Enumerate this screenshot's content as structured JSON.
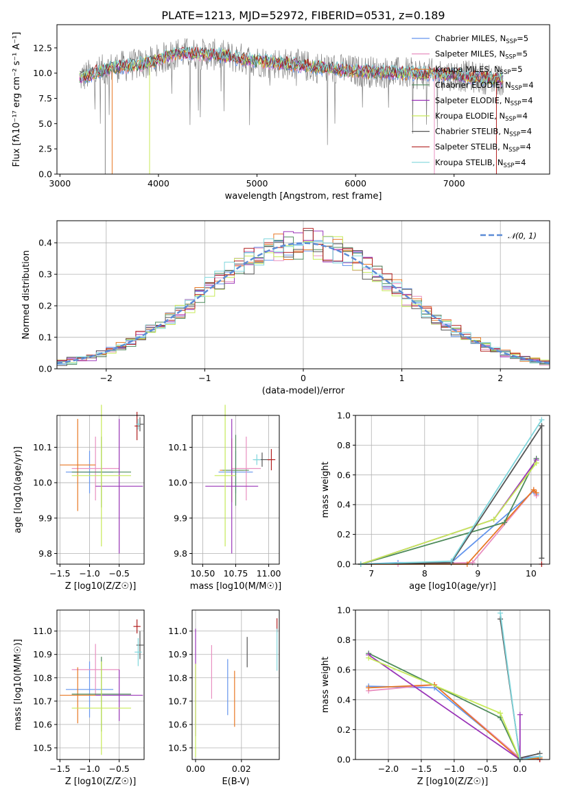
{
  "chart_data": [
    {
      "type": "line",
      "title": "PLATE=1213, MJD=52972, FIBERID=0531, z=0.189",
      "xlabel": "wavelength [Angstrom, rest frame]",
      "ylabel": "Flux [fλ10⁻¹⁷ erg cm⁻² s⁻¹ A⁻¹]",
      "xlim": [
        2970,
        7970
      ],
      "ylim": [
        0,
        14.8
      ],
      "xticks": [
        3000,
        4000,
        5000,
        6000,
        7000
      ],
      "yticks": [
        0.0,
        2.5,
        5.0,
        7.5,
        10.0,
        12.5
      ],
      "grid": false,
      "legend_position": "top-right",
      "series": [
        {
          "name": "Chabrier MILES, N_SSP=5",
          "color": "#6495ed"
        },
        {
          "name": "Salpeter MILES, N_SSP=5",
          "color": "#e88fc0"
        },
        {
          "name": "Kroupa MILES, N_SSP=5",
          "color": "#e87722"
        },
        {
          "name": "Chabrier ELODIE, N_SSP=4",
          "color": "#4d8a5a"
        },
        {
          "name": "Salpeter ELODIE, N_SSP=4",
          "color": "#9a35b8"
        },
        {
          "name": "Kroupa ELODIE, N_SSP=4",
          "color": "#c6ea57"
        },
        {
          "name": "Chabrier STELIB, N_SSP=4",
          "color": "#555555"
        },
        {
          "name": "Salpeter STELIB, N_SSP=4",
          "color": "#b01c1c"
        },
        {
          "name": "Kroupa STELIB, N_SSP=4",
          "color": "#7fd6dc"
        }
      ],
      "data_color": "#808080",
      "approx_continuum": [
        [
          3200,
          9.5
        ],
        [
          3500,
          10.5
        ],
        [
          3900,
          11.0
        ],
        [
          4200,
          12.0
        ],
        [
          4600,
          11.8
        ],
        [
          5000,
          11.2
        ],
        [
          5500,
          10.7
        ],
        [
          6000,
          10.2
        ],
        [
          6500,
          10.0
        ],
        [
          7000,
          9.8
        ],
        [
          7500,
          9.3
        ]
      ]
    },
    {
      "type": "line",
      "xlabel": "(data-model)/error",
      "ylabel": "Normed distribution",
      "xlim": [
        -2.5,
        2.5
      ],
      "ylim": [
        0,
        0.47
      ],
      "xticks": [
        -2,
        -1,
        0,
        1,
        2
      ],
      "yticks": [
        0.0,
        0.1,
        0.2,
        0.3,
        0.4
      ],
      "grid": true,
      "legend": "𝒩(0, 1)",
      "legend_position": "top-right",
      "reference_curve": "normal(0,1)",
      "histogram_bin_width": 0.1
    },
    {
      "type": "scatter",
      "xlabel": "Z [log10(Z/Z☉)]",
      "ylabel": "age [log10(age/yr)]",
      "xlim": [
        -1.55,
        -0.08
      ],
      "ylim": [
        9.77,
        10.19
      ],
      "xticks": [
        -1.5,
        -1.0,
        -0.5
      ],
      "yticks": [
        9.8,
        9.9,
        10.0,
        10.1
      ],
      "grid": true,
      "points": [
        {
          "x": -1.0,
          "y": 10.03,
          "xerr": 0.4,
          "yerr": 0.06,
          "color": "#6495ed"
        },
        {
          "x": -0.9,
          "y": 10.04,
          "xerr": 0.4,
          "yerr": 0.09,
          "color": "#e88fc0"
        },
        {
          "x": -1.2,
          "y": 10.05,
          "xerr": 0.3,
          "yerr": 0.13,
          "color": "#e87722"
        },
        {
          "x": -0.8,
          "y": 10.03,
          "xerr": 0.5,
          "yerr": 0.1,
          "color": "#4d8a5a"
        },
        {
          "x": -0.5,
          "y": 9.99,
          "xerr": 0.4,
          "yerr": 0.19,
          "color": "#9a35b8"
        },
        {
          "x": -0.8,
          "y": 10.02,
          "xerr": 0.5,
          "yerr": 0.2,
          "color": "#c6ea57"
        },
        {
          "x": -0.15,
          "y": 10.165,
          "xerr": 0.06,
          "yerr": 0.02,
          "color": "#555555"
        },
        {
          "x": -0.2,
          "y": 10.16,
          "xerr": 0.04,
          "yerr": 0.04,
          "color": "#b01c1c"
        },
        {
          "x": -0.18,
          "y": 10.165,
          "xerr": 0.03,
          "yerr": 0.015,
          "color": "#7fd6dc"
        }
      ]
    },
    {
      "type": "scatter",
      "xlabel": "mass [log10(M/M☉)]",
      "ylabel": "",
      "xlim": [
        10.42,
        11.08
      ],
      "ylim": [
        9.77,
        10.19
      ],
      "xticks": [
        10.5,
        10.75,
        11.0
      ],
      "yticks": [
        9.8,
        9.9,
        10.0,
        10.1
      ],
      "grid": true,
      "points": [
        {
          "x": 10.75,
          "y": 10.03,
          "xerr": 0.13,
          "yerr": 0.06,
          "color": "#6495ed"
        },
        {
          "x": 10.83,
          "y": 10.04,
          "xerr": 0.11,
          "yerr": 0.09,
          "color": "#e88fc0"
        },
        {
          "x": 10.72,
          "y": 10.035,
          "xerr": 0.09,
          "yerr": 0.09,
          "color": "#e87722"
        },
        {
          "x": 10.75,
          "y": 10.035,
          "xerr": 0.1,
          "yerr": 0.1,
          "color": "#4d8a5a"
        },
        {
          "x": 10.72,
          "y": 9.99,
          "xerr": 0.2,
          "yerr": 0.19,
          "color": "#9a35b8"
        },
        {
          "x": 10.67,
          "y": 10.02,
          "xerr": 0.08,
          "yerr": 0.2,
          "color": "#c6ea57"
        },
        {
          "x": 10.95,
          "y": 10.065,
          "xerr": 0.06,
          "yerr": 0.02,
          "color": "#555555"
        },
        {
          "x": 11.02,
          "y": 10.065,
          "xerr": 0.03,
          "yerr": 0.03,
          "color": "#b01c1c"
        },
        {
          "x": 10.91,
          "y": 10.065,
          "xerr": 0.03,
          "yerr": 0.015,
          "color": "#7fd6dc"
        }
      ]
    },
    {
      "type": "line",
      "xlabel": "age [log10(age/yr)]",
      "ylabel": "mass weight",
      "xlim": [
        6.7,
        10.35
      ],
      "ylim": [
        0,
        1.0
      ],
      "xticks": [
        7,
        8,
        9,
        10
      ],
      "yticks": [
        0.0,
        0.2,
        0.4,
        0.6,
        0.8,
        1.0
      ],
      "grid": true,
      "series": [
        {
          "color": "#6495ed",
          "x": [
            6.8,
            7.5,
            8.5,
            10.05,
            10.1
          ],
          "y": [
            0.0,
            0.01,
            0.01,
            0.49,
            0.47
          ]
        },
        {
          "color": "#e88fc0",
          "x": [
            6.8,
            7.5,
            8.9,
            10.05,
            10.1
          ],
          "y": [
            0.0,
            0.0,
            0.01,
            0.5,
            0.46
          ]
        },
        {
          "color": "#e87722",
          "x": [
            6.8,
            8.8,
            10.05,
            10.1
          ],
          "y": [
            0.0,
            0.0,
            0.5,
            0.48
          ]
        },
        {
          "color": "#4d8a5a",
          "x": [
            6.8,
            9.5,
            10.1
          ],
          "y": [
            0.0,
            0.28,
            0.71
          ]
        },
        {
          "color": "#9a35b8",
          "x": [
            6.8,
            9.3,
            10.1
          ],
          "y": [
            0.0,
            0.3,
            0.7
          ]
        },
        {
          "color": "#c6ea57",
          "x": [
            6.8,
            9.3,
            10.1
          ],
          "y": [
            0.0,
            0.3,
            0.68
          ]
        },
        {
          "color": "#555555",
          "x": [
            6.8,
            8.5,
            10.2,
            10.2
          ],
          "y": [
            0.0,
            0.01,
            0.93,
            0.04
          ]
        },
        {
          "color": "#b01c1c",
          "x": [
            10.2
          ],
          "y": [
            0.0
          ]
        },
        {
          "color": "#7fd6dc",
          "x": [
            6.8,
            8.5,
            10.2
          ],
          "y": [
            0.0,
            0.02,
            0.97
          ]
        }
      ]
    },
    {
      "type": "scatter",
      "xlabel": "Z [log10(Z/Z☉)]",
      "ylabel": "mass [log10(M/M☉)]",
      "xlim": [
        -1.55,
        -0.08
      ],
      "ylim": [
        10.45,
        11.09
      ],
      "xticks": [
        -1.5,
        -1.0,
        -0.5
      ],
      "yticks": [
        10.5,
        10.6,
        10.7,
        10.8,
        10.9,
        11.0
      ],
      "grid": true,
      "points": [
        {
          "x": -1.0,
          "y": 10.75,
          "xerr": 0.4,
          "yerr": 0.12,
          "color": "#6495ed"
        },
        {
          "x": -0.9,
          "y": 10.835,
          "xerr": 0.4,
          "yerr": 0.11,
          "color": "#e88fc0"
        },
        {
          "x": -1.2,
          "y": 10.725,
          "xerr": 0.3,
          "yerr": 0.12,
          "color": "#e87722"
        },
        {
          "x": -0.8,
          "y": 10.73,
          "xerr": 0.5,
          "yerr": 0.16,
          "color": "#4d8a5a"
        },
        {
          "x": -0.5,
          "y": 10.725,
          "xerr": 0.4,
          "yerr": 0.11,
          "color": "#9a35b8"
        },
        {
          "x": -0.8,
          "y": 10.67,
          "xerr": 0.5,
          "yerr": 0.2,
          "color": "#c6ea57"
        },
        {
          "x": -0.15,
          "y": 10.94,
          "xerr": 0.06,
          "yerr": 0.06,
          "color": "#555555"
        },
        {
          "x": -0.2,
          "y": 11.02,
          "xerr": 0.06,
          "yerr": 0.03,
          "color": "#b01c1c"
        },
        {
          "x": -0.18,
          "y": 10.91,
          "xerr": 0.06,
          "yerr": 0.06,
          "color": "#7fd6dc"
        }
      ]
    },
    {
      "type": "scatter",
      "xlabel": "E(B-V)",
      "ylabel": "",
      "xlim": [
        -0.0015,
        0.0365
      ],
      "ylim": [
        10.45,
        11.09
      ],
      "xticks": [
        0.0,
        0.02
      ],
      "yticks": [
        10.5,
        10.6,
        10.7,
        10.8,
        10.9,
        11.0
      ],
      "grid": true,
      "points": [
        {
          "x": 0.0,
          "y": 10.78,
          "yerr": 0.23,
          "color": "#9a35b8"
        },
        {
          "x": 0.0,
          "y": 10.66,
          "yerr": 0.2,
          "color": "#c6ea57"
        },
        {
          "x": 0.007,
          "y": 10.825,
          "yerr": 0.115,
          "color": "#e88fc0"
        },
        {
          "x": 0.014,
          "y": 10.76,
          "yerr": 0.12,
          "color": "#6495ed"
        },
        {
          "x": 0.017,
          "y": 10.71,
          "yerr": 0.12,
          "color": "#e87722"
        },
        {
          "x": 0.0225,
          "y": 10.91,
          "yerr": 0.065,
          "color": "#555555"
        },
        {
          "x": 0.0355,
          "y": 11.025,
          "yerr": 0.03,
          "color": "#b01c1c"
        },
        {
          "x": 0.0355,
          "y": 10.92,
          "yerr": 0.09,
          "color": "#7fd6dc"
        }
      ]
    },
    {
      "type": "line",
      "xlabel": "Z [log10(Z/Z☉)]",
      "ylabel": "mass weight",
      "xlim": [
        -2.5,
        0.45
      ],
      "ylim": [
        0,
        1.0
      ],
      "xticks": [
        -2.0,
        -1.5,
        -1.0,
        -0.5,
        0.0
      ],
      "yticks": [
        0.0,
        0.2,
        0.4,
        0.6,
        0.8,
        1.0
      ],
      "grid": true,
      "series": [
        {
          "color": "#6495ed",
          "x": [
            -2.3,
            -1.3,
            0.0,
            0.3
          ],
          "y": [
            0.49,
            0.48,
            0.01,
            0.02
          ]
        },
        {
          "color": "#e88fc0",
          "x": [
            -2.3,
            -1.3,
            0.0,
            0.3
          ],
          "y": [
            0.46,
            0.5,
            0.01,
            0.0
          ]
        },
        {
          "color": "#e87722",
          "x": [
            -2.3,
            -1.3,
            0.0,
            0.3
          ],
          "y": [
            0.48,
            0.5,
            0.0,
            0.01
          ]
        },
        {
          "color": "#4d8a5a",
          "x": [
            -2.3,
            -0.3,
            0.0
          ],
          "y": [
            0.71,
            0.28,
            0.0
          ]
        },
        {
          "color": "#9a35b8",
          "x": [
            -2.3,
            0.0,
            0.0
          ],
          "y": [
            0.7,
            0.0,
            0.3
          ]
        },
        {
          "color": "#c6ea57",
          "x": [
            -2.3,
            -0.3,
            0.0
          ],
          "y": [
            0.68,
            0.31,
            0.0
          ]
        },
        {
          "color": "#555555",
          "x": [
            -0.3,
            0.0,
            0.3
          ],
          "y": [
            0.94,
            0.01,
            0.04
          ]
        },
        {
          "color": "#b01c1c",
          "x": [
            0.3
          ],
          "y": [
            0.0
          ]
        },
        {
          "color": "#7fd6dc",
          "x": [
            -0.3,
            0.0,
            0.3
          ],
          "y": [
            0.98,
            0.0,
            0.02
          ]
        }
      ]
    }
  ]
}
